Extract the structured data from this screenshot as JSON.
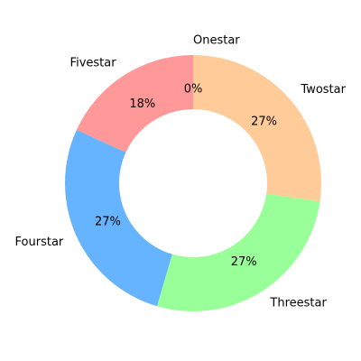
{
  "chart_data": {
    "type": "pie",
    "donut": true,
    "start_angle_deg": 90,
    "direction": "counterclockwise",
    "slices": [
      {
        "label": "Fivestar",
        "value": 18,
        "pct_label": "18%",
        "color": "#ff9999"
      },
      {
        "label": "Fourstar",
        "value": 27,
        "pct_label": "27%",
        "color": "#66b3ff"
      },
      {
        "label": "Threestar",
        "value": 27,
        "pct_label": "27%",
        "color": "#99ff99"
      },
      {
        "label": "Twostar",
        "value": 27,
        "pct_label": "27%",
        "color": "#ffcc99"
      },
      {
        "label": "Onestar",
        "value": 0,
        "pct_label": "0%",
        "color": "#c2c2f0"
      }
    ]
  }
}
